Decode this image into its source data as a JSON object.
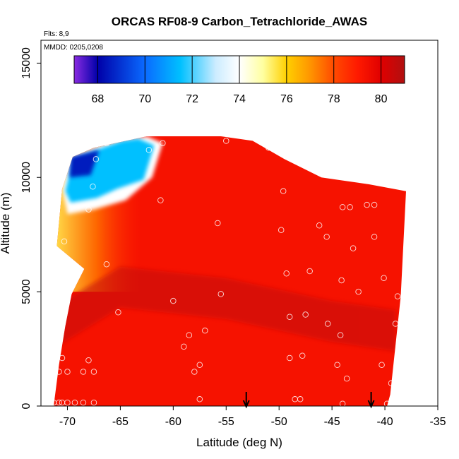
{
  "chart_data": {
    "type": "heatmap",
    "title": "ORCAS RF08-9 Carbon_Tetrachloride_AWAS",
    "flights_label": "Flts: 8,9",
    "dates_label": "MMDD: 0205,0208",
    "xlabel": "Latitude (deg N)",
    "ylabel": "Altitude (m)",
    "xlim": [
      -72.5,
      -35
    ],
    "ylim": [
      0,
      16000
    ],
    "x_ticks": [
      -70,
      -65,
      -60,
      -55,
      -50,
      -45,
      -40,
      -35
    ],
    "y_ticks": [
      0,
      5000,
      10000,
      15000
    ],
    "colorbar": {
      "range": [
        67,
        81
      ],
      "ticks": [
        68,
        70,
        72,
        74,
        76,
        78,
        80
      ],
      "stops": [
        {
          "v": 67.0,
          "c": "#8a2be2"
        },
        {
          "v": 68.0,
          "c": "#0000a8"
        },
        {
          "v": 70.0,
          "c": "#0a6aff"
        },
        {
          "v": 71.5,
          "c": "#00c0ff"
        },
        {
          "v": 73.0,
          "c": "#ccecff"
        },
        {
          "v": 74.0,
          "c": "#ffffff"
        },
        {
          "v": 75.0,
          "c": "#ffffa0"
        },
        {
          "v": 76.0,
          "c": "#ffd000"
        },
        {
          "v": 77.0,
          "c": "#ff9500"
        },
        {
          "v": 78.0,
          "c": "#ff4a00"
        },
        {
          "v": 79.0,
          "c": "#ff1a00"
        },
        {
          "v": 80.0,
          "c": "#e00000"
        },
        {
          "v": 81.0,
          "c": "#b01010"
        }
      ]
    },
    "coverage_upper_edge": [
      [
        -71.3,
        0
      ],
      [
        -70.8,
        1800
      ],
      [
        -70.2,
        3500
      ],
      [
        -69.6,
        4900
      ],
      [
        -68.4,
        6000
      ],
      [
        -71.0,
        7000
      ],
      [
        -70.5,
        9500
      ],
      [
        -69.5,
        10900
      ],
      [
        -67.5,
        11300
      ],
      [
        -65.5,
        11500
      ],
      [
        -62.5,
        11800
      ],
      [
        -55.5,
        11800
      ],
      [
        -52.5,
        11600
      ],
      [
        -49.5,
        10800
      ],
      [
        -46.0,
        10000
      ],
      [
        -41.5,
        9700
      ],
      [
        -38.0,
        9400
      ],
      [
        -38.5,
        4800
      ],
      [
        -39.5,
        500
      ],
      [
        -39.8,
        0
      ]
    ],
    "cold_region": {
      "edge": [
        [
          -69.8,
          10900
        ],
        [
          -67.0,
          11400
        ],
        [
          -64.0,
          11700
        ],
        [
          -62.5,
          11800
        ],
        [
          -61.0,
          11500
        ],
        [
          -62.0,
          10000
        ],
        [
          -64.5,
          9000
        ],
        [
          -67.5,
          8600
        ],
        [
          -70.0,
          8400
        ],
        [
          -70.5,
          9500
        ]
      ],
      "value": 71.5
    },
    "vertical_profile_value_at_edge": 75.5,
    "background_value": 79.3,
    "dark_band": {
      "path": [
        [
          -71,
          3500
        ],
        [
          -65,
          5200
        ],
        [
          -55,
          4700
        ],
        [
          -45,
          3700
        ],
        [
          -39,
          3300
        ]
      ],
      "value": 80.6
    },
    "points": [
      [
        -67.3,
        10800
      ],
      [
        -67.6,
        9600
      ],
      [
        -68.0,
        8600
      ],
      [
        -66.3,
        11500
      ],
      [
        -62.3,
        11200
      ],
      [
        -61.0,
        11500
      ],
      [
        -55.0,
        11600
      ],
      [
        -51.0,
        11300
      ],
      [
        -61.2,
        9000
      ],
      [
        -55.8,
        8000
      ],
      [
        -49.6,
        9400
      ],
      [
        -43.3,
        8700
      ],
      [
        -44.0,
        8700
      ],
      [
        -41.7,
        8800
      ],
      [
        -41.0,
        8800
      ],
      [
        -46.2,
        7900
      ],
      [
        -49.8,
        7700
      ],
      [
        -45.5,
        7400
      ],
      [
        -41.0,
        7400
      ],
      [
        -43.0,
        6900
      ],
      [
        -70.3,
        7200
      ],
      [
        -66.3,
        6200
      ],
      [
        -49.3,
        5800
      ],
      [
        -47.1,
        5900
      ],
      [
        -44.1,
        5500
      ],
      [
        -42.5,
        5000
      ],
      [
        -40.1,
        5600
      ],
      [
        -38.8,
        4800
      ],
      [
        -60.0,
        4600
      ],
      [
        -55.5,
        4900
      ],
      [
        -65.2,
        4100
      ],
      [
        -70.5,
        4100
      ],
      [
        -71.0,
        4100
      ],
      [
        -49.0,
        3900
      ],
      [
        -47.5,
        4000
      ],
      [
        -45.4,
        3600
      ],
      [
        -39.0,
        3600
      ],
      [
        -57.0,
        3300
      ],
      [
        -58.5,
        3100
      ],
      [
        -44.2,
        3100
      ],
      [
        -59.0,
        2600
      ],
      [
        -68.0,
        2000
      ],
      [
        -70.5,
        2100
      ],
      [
        -49.0,
        2100
      ],
      [
        -47.8,
        2200
      ],
      [
        -71.3,
        1900
      ],
      [
        -70.8,
        1500
      ],
      [
        -70.0,
        1500
      ],
      [
        -68.5,
        1500
      ],
      [
        -67.5,
        1500
      ],
      [
        -57.5,
        1800
      ],
      [
        -58.0,
        1500
      ],
      [
        -44.5,
        1800
      ],
      [
        -40.3,
        1800
      ],
      [
        -43.6,
        1200
      ],
      [
        -39.4,
        1000
      ],
      [
        -57.5,
        300
      ],
      [
        -48.0,
        300
      ],
      [
        -48.5,
        300
      ],
      [
        -71.3,
        150
      ],
      [
        -70.8,
        150
      ],
      [
        -70.5,
        150
      ],
      [
        -70.0,
        150
      ],
      [
        -69.3,
        150
      ],
      [
        -68.5,
        150
      ],
      [
        -67.5,
        150
      ],
      [
        -44.0,
        100
      ],
      [
        -39.8,
        100
      ]
    ],
    "arrows_at_latitude": [
      -53.1,
      -41.3
    ]
  }
}
